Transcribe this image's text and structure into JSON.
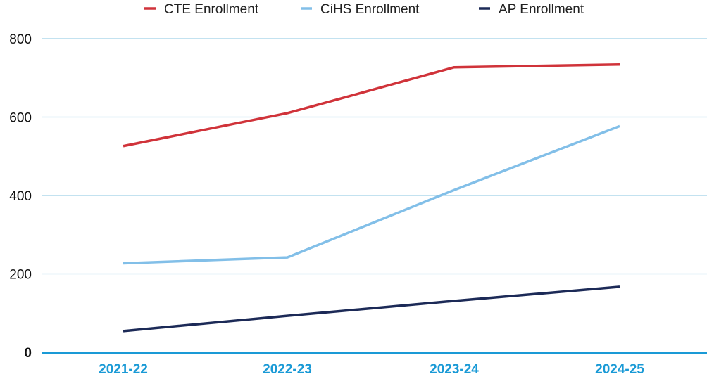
{
  "chart_data": {
    "type": "line",
    "title": "",
    "xlabel": "",
    "ylabel": "",
    "categories": [
      "2021-22",
      "2022-23",
      "2023-24",
      "2024-25"
    ],
    "ylim": [
      0,
      800
    ],
    "yticks": [
      0,
      200,
      400,
      600,
      800
    ],
    "ytick_labels": [
      "0",
      "200",
      "400",
      "600",
      "800"
    ],
    "grid": true,
    "legend_position": "top",
    "series": [
      {
        "name": "CTE Enrollment",
        "color": "#d0333a",
        "values": [
          526,
          610,
          727,
          734
        ]
      },
      {
        "name": "CiHS Enrollment",
        "color": "#82bfe8",
        "values": [
          227,
          242,
          414,
          577
        ]
      },
      {
        "name": "AP Enrollment",
        "color": "#1c2a57",
        "values": [
          54,
          93,
          131,
          167
        ]
      }
    ],
    "colors": {
      "grid": "#9fd0e6",
      "axis": "#1a9ad6",
      "xtick": "#1a9ad6"
    }
  }
}
